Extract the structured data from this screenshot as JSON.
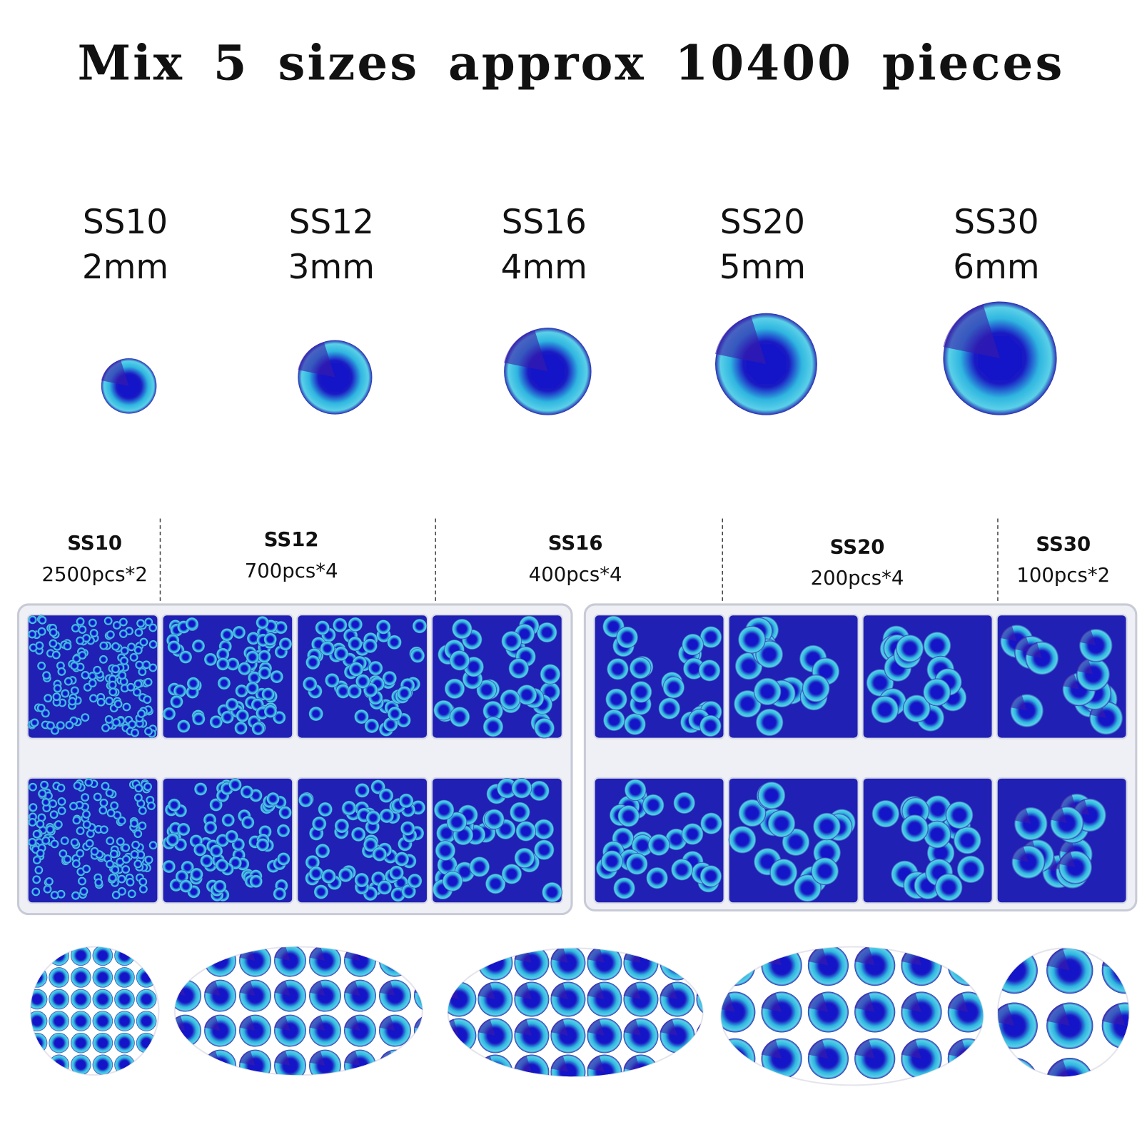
{
  "title": "Mix 5 sizes approx 10400 pieces",
  "sizes": [
    {
      "name": "SS10",
      "mm": "2mm"
    },
    {
      "name": "SS12",
      "mm": "3mm"
    },
    {
      "name": "SS16",
      "mm": "4mm"
    },
    {
      "name": "SS20",
      "mm": "5mm"
    },
    {
      "name": "SS30",
      "mm": "6mm"
    }
  ],
  "packs": [
    {
      "name": "SS10",
      "count": "2500pcs*2"
    },
    {
      "name": "SS12",
      "count": "700pcs*4"
    },
    {
      "name": "SS16",
      "count": "400pcs*4"
    },
    {
      "name": "SS20",
      "count": "200pcs*4"
    },
    {
      "name": "SS30",
      "count": "100pcs*2"
    }
  ]
}
